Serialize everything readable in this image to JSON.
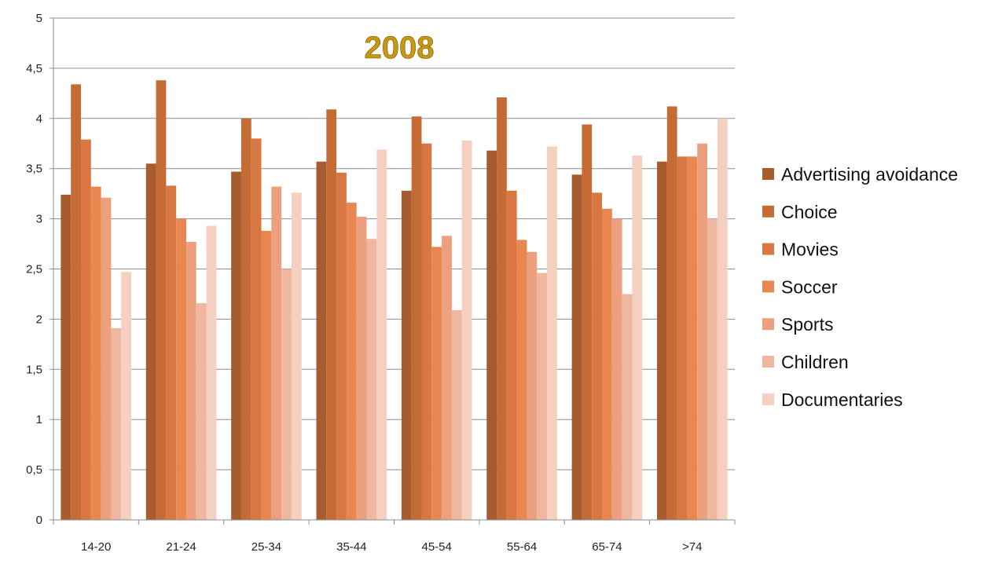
{
  "chart_data": {
    "type": "bar",
    "title": "2008",
    "xlabel": "",
    "ylabel": "",
    "ylim": [
      0,
      5
    ],
    "yticks": [
      "0",
      "0,5",
      "1",
      "1,5",
      "2",
      "2,5",
      "3",
      "3,5",
      "4",
      "4,5",
      "5"
    ],
    "ytick_values": [
      0,
      0.5,
      1,
      1.5,
      2,
      2.5,
      3,
      3.5,
      4,
      4.5,
      5
    ],
    "grid": true,
    "legend_position": "right",
    "categories": [
      "14-20",
      "21-24",
      "25-34",
      "35-44",
      "45-54",
      "55-64",
      "65-74",
      ">74"
    ],
    "series": [
      {
        "name": "Advertising avoidance",
        "color": "#a65c2e",
        "values": [
          3.24,
          3.55,
          3.47,
          3.57,
          3.28,
          3.68,
          3.44,
          3.57
        ]
      },
      {
        "name": "Choice",
        "color": "#c46b36",
        "values": [
          4.34,
          4.38,
          4.0,
          4.09,
          4.02,
          4.21,
          3.94,
          4.12
        ]
      },
      {
        "name": "Movies",
        "color": "#d87741",
        "values": [
          3.79,
          3.33,
          3.8,
          3.46,
          3.75,
          3.28,
          3.26,
          3.62
        ]
      },
      {
        "name": "Soccer",
        "color": "#e8874f",
        "values": [
          3.32,
          3.0,
          2.88,
          3.16,
          2.72,
          2.79,
          3.1,
          3.62
        ]
      },
      {
        "name": "Sports",
        "color": "#eda07d",
        "values": [
          3.21,
          2.77,
          3.32,
          3.02,
          2.83,
          2.67,
          3.0,
          3.75
        ]
      },
      {
        "name": "Children",
        "color": "#efb7a0",
        "values": [
          1.91,
          2.16,
          2.5,
          2.8,
          2.09,
          2.46,
          2.25,
          3.0
        ]
      },
      {
        "name": "Documentaries",
        "color": "#f5cfc0",
        "values": [
          2.47,
          2.93,
          3.26,
          3.69,
          3.78,
          3.72,
          3.63,
          4.0
        ]
      }
    ]
  },
  "colors": {
    "grid": "#8c8c8c",
    "axis": "#8c8c8c",
    "title_fill": "#c9980f"
  }
}
